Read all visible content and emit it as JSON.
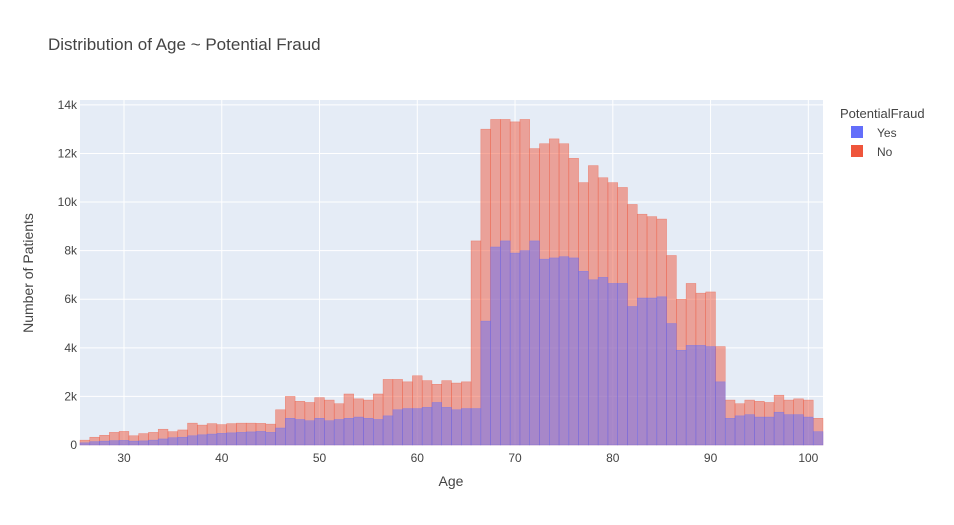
{
  "chart_data": {
    "type": "bar",
    "title": "Distribution of Age ~ Potential Fraud",
    "xlabel": "Age",
    "ylabel": "Number of Patients",
    "xlim": [
      25.5,
      101.5
    ],
    "ylim": [
      0,
      14200
    ],
    "x_ticks": [
      30,
      40,
      50,
      60,
      70,
      80,
      90,
      100
    ],
    "y_ticks": [
      0,
      2000,
      4000,
      6000,
      8000,
      10000,
      12000,
      14000
    ],
    "y_tick_labels": [
      "0",
      "2k",
      "4k",
      "6k",
      "8k",
      "10k",
      "12k",
      "14k"
    ],
    "barmode": "overlay",
    "grid": true,
    "legend": {
      "title": "PotentialFraud",
      "position": "top-right"
    },
    "x": [
      26,
      27,
      28,
      29,
      30,
      31,
      32,
      33,
      34,
      35,
      36,
      37,
      38,
      39,
      40,
      41,
      42,
      43,
      44,
      45,
      46,
      47,
      48,
      49,
      50,
      51,
      52,
      53,
      54,
      55,
      56,
      57,
      58,
      59,
      60,
      61,
      62,
      63,
      64,
      65,
      66,
      67,
      68,
      69,
      70,
      71,
      72,
      73,
      74,
      75,
      76,
      77,
      78,
      79,
      80,
      81,
      82,
      83,
      84,
      85,
      86,
      87,
      88,
      89,
      90,
      91,
      92,
      93,
      94,
      95,
      96,
      97,
      98,
      99,
      100,
      101
    ],
    "series": [
      {
        "name": "Yes",
        "color": "#636efa",
        "values": [
          90,
          140,
          160,
          180,
          190,
          160,
          170,
          200,
          250,
          300,
          320,
          380,
          420,
          450,
          480,
          500,
          520,
          540,
          560,
          520,
          700,
          1100,
          1050,
          1000,
          1100,
          1000,
          1050,
          1100,
          1150,
          1100,
          1050,
          1200,
          1450,
          1500,
          1500,
          1550,
          1750,
          1550,
          1450,
          1500,
          1500,
          5100,
          8150,
          8400,
          7900,
          8000,
          8400,
          7650,
          7700,
          7750,
          7700,
          7150,
          6800,
          6900,
          6650,
          6650,
          5700,
          6050,
          6050,
          6100,
          5000,
          3900,
          4100,
          4100,
          4050,
          2600,
          1100,
          1200,
          1250,
          1150,
          1150,
          1350,
          1250,
          1250,
          1150,
          550
        ]
      },
      {
        "name": "No",
        "color": "#ef553b",
        "values": [
          200,
          320,
          400,
          520,
          560,
          380,
          470,
          520,
          650,
          550,
          620,
          900,
          820,
          880,
          840,
          880,
          900,
          900,
          890,
          860,
          1450,
          2000,
          1800,
          1750,
          1950,
          1850,
          1700,
          2100,
          1900,
          1850,
          2100,
          2700,
          2700,
          2600,
          2850,
          2650,
          2500,
          2650,
          2550,
          2600,
          8400,
          13000,
          13400,
          13400,
          13300,
          13400,
          12200,
          12400,
          12600,
          12400,
          11800,
          10800,
          11500,
          11000,
          10800,
          10600,
          9900,
          9500,
          9400,
          9300,
          7800,
          6000,
          6650,
          6250,
          6300,
          4050,
          1850,
          1700,
          1850,
          1800,
          1750,
          2050,
          1850,
          1900,
          1850,
          1100
        ]
      }
    ]
  }
}
